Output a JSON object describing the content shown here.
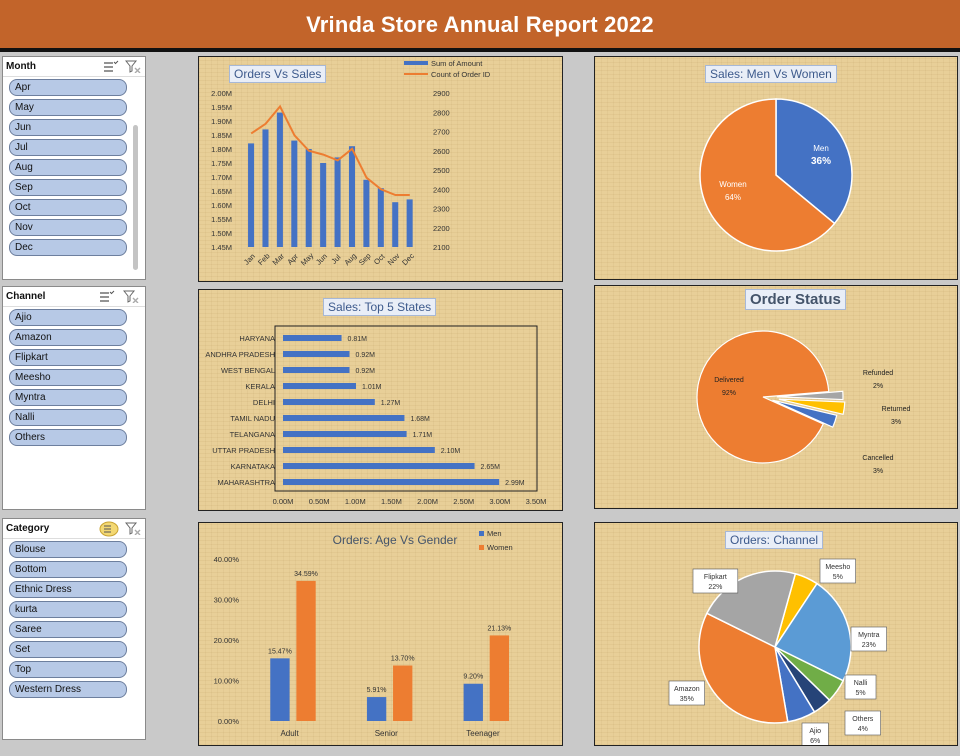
{
  "header": {
    "title": "Vrinda Store Annual Report 2022"
  },
  "slicers": {
    "month": {
      "title": "Month",
      "items": [
        "Apr",
        "May",
        "Jun",
        "Jul",
        "Aug",
        "Sep",
        "Oct",
        "Nov",
        "Dec"
      ]
    },
    "channel": {
      "title": "Channel",
      "items": [
        "Ajio",
        "Amazon",
        "Flipkart",
        "Meesho",
        "Myntra",
        "Nalli",
        "Others"
      ]
    },
    "category": {
      "title": "Category",
      "items": [
        "Blouse",
        "Bottom",
        "Ethnic Dress",
        "kurta",
        "Saree",
        "Set",
        "Top",
        "Western Dress"
      ]
    }
  },
  "colors": {
    "blue": "#4472c4",
    "orange": "#ed7d31",
    "grey": "#a5a5a5",
    "gold": "#ffc000",
    "lightblue": "#5b9bd5",
    "green": "#70ad47",
    "navy": "#264478",
    "brand": "#c2642a"
  },
  "chart_data": [
    {
      "id": "orders_vs_sales",
      "type": "bar",
      "title": "Orders Vs Sales",
      "categories": [
        "Jan",
        "Feb",
        "Mar",
        "Apr",
        "May",
        "Jun",
        "Jul",
        "Aug",
        "Sep",
        "Oct",
        "Nov",
        "Dec"
      ],
      "series": [
        {
          "name": "Sum of Amount",
          "type": "bar",
          "axis": "left",
          "values": [
            1.82,
            1.87,
            1.93,
            1.83,
            1.8,
            1.75,
            1.77,
            1.81,
            1.69,
            1.66,
            1.61,
            1.62
          ]
        },
        {
          "name": "Count of Order ID",
          "type": "line",
          "axis": "right",
          "values": [
            2690,
            2740,
            2830,
            2680,
            2600,
            2580,
            2550,
            2610,
            2460,
            2400,
            2370,
            2370
          ]
        }
      ],
      "y_ticks": [
        "1.45M",
        "1.50M",
        "1.55M",
        "1.60M",
        "1.65M",
        "1.70M",
        "1.75M",
        "1.80M",
        "1.85M",
        "1.90M",
        "1.95M",
        "2.00M"
      ],
      "y2_ticks": [
        "2100",
        "2200",
        "2300",
        "2400",
        "2500",
        "2600",
        "2700",
        "2800",
        "2900"
      ],
      "ylim": [
        1.45,
        2.0
      ],
      "y2lim": [
        2100,
        2900
      ]
    },
    {
      "id": "men_vs_women",
      "type": "pie",
      "title": "Sales: Men Vs Women",
      "slices": [
        {
          "label": "Men",
          "value": 36,
          "text": "36%"
        },
        {
          "label": "Women",
          "value": 64,
          "text": "64%"
        }
      ]
    },
    {
      "id": "top5_states",
      "type": "bar",
      "orientation": "horizontal",
      "title": "Sales: Top 5 States",
      "categories": [
        "HARYANA",
        "ANDHRA PRADESH",
        "WEST BENGAL",
        "KERALA",
        "DELHI",
        "TAMIL NADU",
        "TELANGANA",
        "UTTAR PRADESH",
        "KARNATAKA",
        "MAHARASHTRA"
      ],
      "values": [
        0.81,
        0.92,
        0.92,
        1.01,
        1.27,
        1.68,
        1.71,
        2.1,
        2.65,
        2.99
      ],
      "value_labels": [
        "0.81M",
        "0.92M",
        "0.92M",
        "1.01M",
        "1.27M",
        "1.68M",
        "1.71M",
        "2.10M",
        "2.65M",
        "2.99M"
      ],
      "x_ticks": [
        "0.00M",
        "0.50M",
        "1.00M",
        "1.50M",
        "2.00M",
        "2.50M",
        "3.00M",
        "3.50M"
      ],
      "xlim": [
        0,
        3.5
      ]
    },
    {
      "id": "order_status",
      "type": "pie",
      "title": "Order Status",
      "slices": [
        {
          "label": "Delivered",
          "value": 92,
          "text": "92%"
        },
        {
          "label": "Refunded",
          "value": 2,
          "text": "2%"
        },
        {
          "label": "Returned",
          "value": 3,
          "text": "3%"
        },
        {
          "label": "Cancelled",
          "value": 3,
          "text": "3%"
        }
      ]
    },
    {
      "id": "age_vs_gender",
      "type": "bar",
      "title": "Orders: Age Vs Gender",
      "categories": [
        "Adult",
        "Senior",
        "Teenager"
      ],
      "series": [
        {
          "name": "Men",
          "values": [
            15.47,
            5.91,
            9.2
          ],
          "labels": [
            "15.47%",
            "5.91%",
            "9.20%"
          ]
        },
        {
          "name": "Women",
          "values": [
            34.59,
            13.7,
            21.13
          ],
          "labels": [
            "34.59%",
            "13.70%",
            "21.13%"
          ]
        }
      ],
      "y_ticks": [
        "0.00%",
        "10.00%",
        "20.00%",
        "30.00%",
        "40.00%"
      ],
      "ylim": [
        0,
        40
      ]
    },
    {
      "id": "orders_channel",
      "type": "pie",
      "title": "Orders: Channel",
      "slices": [
        {
          "label": "Meesho",
          "value": 5,
          "text": "5%"
        },
        {
          "label": "Myntra",
          "value": 23,
          "text": "23%"
        },
        {
          "label": "Nalli",
          "value": 5,
          "text": "5%"
        },
        {
          "label": "Others",
          "value": 4,
          "text": "4%"
        },
        {
          "label": "Ajio",
          "value": 6,
          "text": "6%"
        },
        {
          "label": "Amazon",
          "value": 35,
          "text": "35%"
        },
        {
          "label": "Flipkart",
          "value": 22,
          "text": "22%"
        }
      ]
    }
  ]
}
